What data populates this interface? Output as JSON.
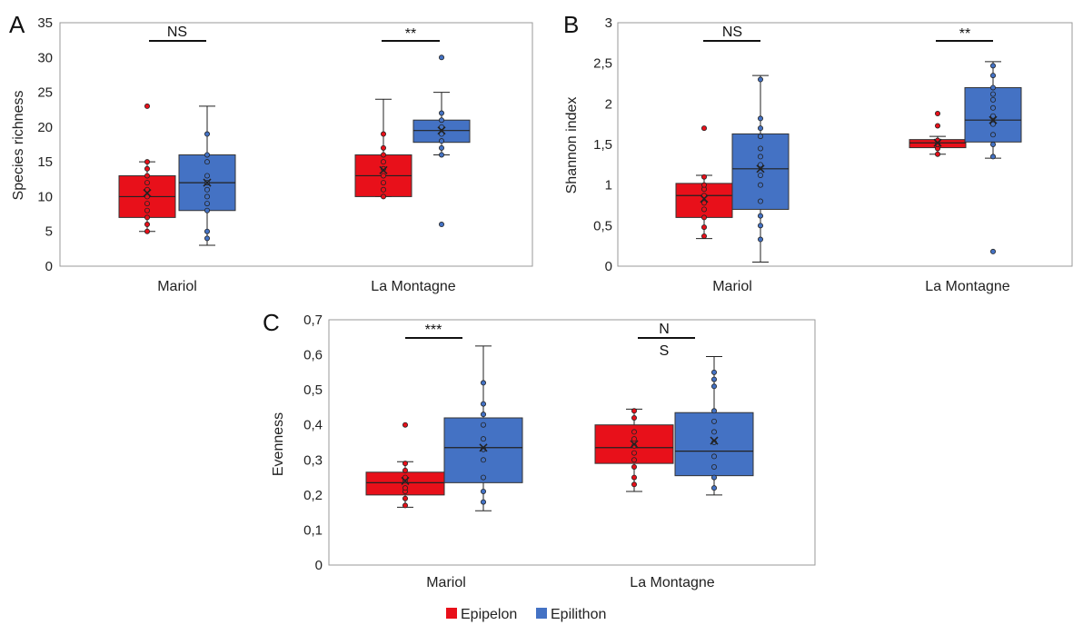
{
  "colors": {
    "epipelon": "#e8101a",
    "epilithon": "#4472c4",
    "axis": "#7f7f7f",
    "frame": "#9a9a9a"
  },
  "legend": [
    {
      "name": "Epipelon",
      "color": "#e8101a"
    },
    {
      "name": "Epilithon",
      "color": "#4472c4"
    }
  ],
  "chart_data": [
    {
      "type": "box",
      "panel": "A",
      "ylabel": "Species richness",
      "ylim": [
        0,
        35
      ],
      "yticks": [
        "0",
        "5",
        "10",
        "15",
        "20",
        "25",
        "30",
        "35"
      ],
      "categories": [
        "Mariol",
        "La Montagne"
      ],
      "significance": [
        "NS",
        "**"
      ],
      "series": [
        {
          "name": "Epipelon",
          "boxes": [
            {
              "whisker_low": 5,
              "q1": 7,
              "median": 10,
              "q3": 13,
              "whisker_high": 15,
              "mean": 10.5,
              "points": [
                5,
                6,
                7,
                8,
                9,
                10,
                11,
                12,
                13,
                14,
                15,
                23
              ]
            },
            {
              "whisker_low": 10,
              "q1": 10,
              "median": 13,
              "q3": 16,
              "whisker_high": 24,
              "mean": 13.8,
              "points": [
                10,
                11,
                12,
                13,
                14,
                15,
                16,
                17,
                19
              ]
            }
          ]
        },
        {
          "name": "Epilithon",
          "boxes": [
            {
              "whisker_low": 3,
              "q1": 8,
              "median": 12,
              "q3": 16,
              "whisker_high": 23,
              "mean": 12,
              "points": [
                4,
                5,
                8,
                9,
                10,
                11,
                12,
                13,
                15,
                16,
                19
              ]
            },
            {
              "whisker_low": 16,
              "q1": 17.8,
              "median": 19.5,
              "q3": 21,
              "whisker_high": 25,
              "mean": 19.5,
              "points": [
                6,
                16,
                17,
                18,
                19,
                20,
                21,
                22,
                30
              ]
            }
          ]
        }
      ]
    },
    {
      "type": "box",
      "panel": "B",
      "ylabel": "Shannon index",
      "ylim": [
        0,
        3
      ],
      "yticks": [
        "0",
        "0,5",
        "1",
        "1,5",
        "2",
        "2,5",
        "3"
      ],
      "categories": [
        "Mariol",
        "La Montagne"
      ],
      "significance": [
        "NS",
        "**"
      ],
      "series": [
        {
          "name": "Epipelon",
          "boxes": [
            {
              "whisker_low": 0.34,
              "q1": 0.6,
              "median": 0.87,
              "q3": 1.02,
              "whisker_high": 1.12,
              "mean": 0.83,
              "points": [
                0.37,
                0.48,
                0.6,
                0.7,
                0.78,
                0.87,
                0.95,
                1.0,
                1.1,
                1.7
              ]
            },
            {
              "whisker_low": 1.38,
              "q1": 1.46,
              "median": 1.52,
              "q3": 1.56,
              "whisker_high": 1.6,
              "mean": 1.52,
              "points": [
                1.38,
                1.45,
                1.5,
                1.55,
                1.73,
                1.88
              ]
            }
          ]
        },
        {
          "name": "Epilithon",
          "boxes": [
            {
              "whisker_low": 0.05,
              "q1": 0.7,
              "median": 1.2,
              "q3": 1.63,
              "whisker_high": 2.35,
              "mean": 1.2,
              "points": [
                0.33,
                0.5,
                0.62,
                0.8,
                1.0,
                1.12,
                1.25,
                1.35,
                1.45,
                1.6,
                1.7,
                1.82,
                2.3
              ]
            },
            {
              "whisker_low": 1.33,
              "q1": 1.53,
              "median": 1.8,
              "q3": 2.2,
              "whisker_high": 2.52,
              "mean": 1.8,
              "points": [
                0.18,
                1.35,
                1.5,
                1.62,
                1.75,
                1.85,
                1.95,
                2.05,
                2.12,
                2.2,
                2.35,
                2.47
              ]
            }
          ]
        }
      ]
    },
    {
      "type": "box",
      "panel": "C",
      "ylabel": "Evenness",
      "ylim": [
        0,
        0.7
      ],
      "yticks": [
        "0",
        "0,1",
        "0,2",
        "0,3",
        "0,4",
        "0,5",
        "0,6",
        "0,7"
      ],
      "categories": [
        "Mariol",
        "La Montagne"
      ],
      "significance": [
        "***",
        "N\nS"
      ],
      "series": [
        {
          "name": "Epipelon",
          "boxes": [
            {
              "whisker_low": 0.165,
              "q1": 0.2,
              "median": 0.235,
              "q3": 0.265,
              "whisker_high": 0.295,
              "mean": 0.24,
              "points": [
                0.17,
                0.19,
                0.21,
                0.22,
                0.24,
                0.25,
                0.27,
                0.29,
                0.4
              ]
            },
            {
              "whisker_low": 0.21,
              "q1": 0.29,
              "median": 0.335,
              "q3": 0.4,
              "whisker_high": 0.445,
              "mean": 0.345,
              "points": [
                0.23,
                0.25,
                0.28,
                0.3,
                0.32,
                0.34,
                0.36,
                0.38,
                0.42,
                0.44
              ]
            }
          ]
        },
        {
          "name": "Epilithon",
          "boxes": [
            {
              "whisker_low": 0.155,
              "q1": 0.235,
              "median": 0.335,
              "q3": 0.42,
              "whisker_high": 0.625,
              "mean": 0.335,
              "points": [
                0.18,
                0.21,
                0.25,
                0.3,
                0.33,
                0.36,
                0.4,
                0.43,
                0.46,
                0.52
              ]
            },
            {
              "whisker_low": 0.2,
              "q1": 0.255,
              "median": 0.325,
              "q3": 0.435,
              "whisker_high": 0.595,
              "mean": 0.355,
              "points": [
                0.22,
                0.25,
                0.28,
                0.31,
                0.35,
                0.38,
                0.41,
                0.44,
                0.51,
                0.53,
                0.55
              ]
            }
          ]
        }
      ]
    }
  ]
}
